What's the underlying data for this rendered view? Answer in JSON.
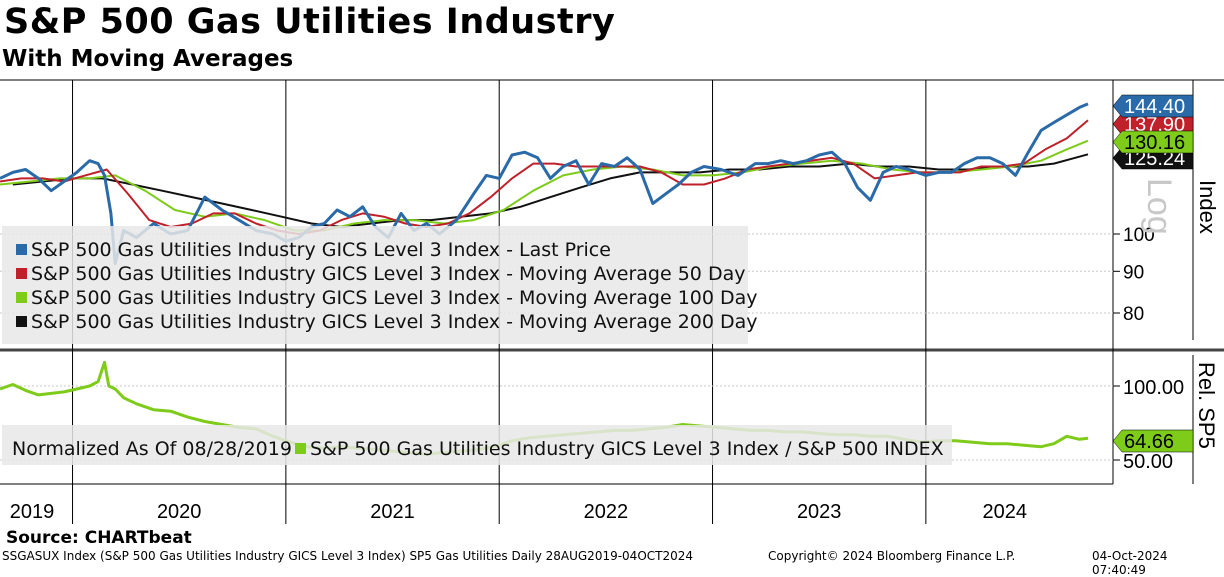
{
  "header": {
    "title": "S&P 500 Gas Utilities Industry",
    "subtitle": "With Moving Averages"
  },
  "legend": {
    "items": [
      {
        "label": "S&P 500 Gas Utilities Industry GICS Level 3 Index - Last Price",
        "color": "#2a6aa8"
      },
      {
        "label": "S&P 500 Gas Utilities Industry GICS Level 3 Index - Moving Average 50 Day",
        "color": "#c0202a"
      },
      {
        "label": "S&P 500 Gas Utilities Industry GICS Level 3 Index - Moving Average 100 Day",
        "color": "#7ecb1a"
      },
      {
        "label": "S&P 500 Gas Utilities Industry GICS Level 3 Index - Moving Average 200 Day",
        "color": "#111111"
      }
    ],
    "normalized": "Normalized As Of 08/28/2019",
    "ratio_label": "S&P 500 Gas Utilities Industry GICS Level 3 Index / S&P 500 INDEX"
  },
  "footer": {
    "source": "Source: CHARTbeat",
    "ticker_info": "SSGASUX Index (S&P 500 Gas Utilities Industry GICS Level 3 Index) SP5 Gas Utilities  Daily 28AUG2019-04OCT2024",
    "copyright": "Copyright© 2024 Bloomberg Finance L.P.",
    "timestamp": "04-Oct-2024 07:40:49"
  },
  "chart_data": [
    {
      "type": "line",
      "panel": "price",
      "ylabel": "Index",
      "scale": "log",
      "scale_label": "Log",
      "yticks": [
        80,
        90,
        100
      ],
      "ylim": [
        74,
        150
      ],
      "xlim": [
        2019.66,
        2024.76
      ],
      "x_years": [
        "2019",
        "2020",
        "2021",
        "2022",
        "2023",
        "2024"
      ],
      "last_values": [
        {
          "label": "144.40",
          "color": "#2a6aa8",
          "value": 144.4
        },
        {
          "label": "137.90",
          "color": "#c0202a",
          "value": 137.9
        },
        {
          "label": "130.16",
          "color": "#7ecb1a",
          "value": 130.16
        },
        {
          "label": "125.24",
          "color": "#111111",
          "value": 125.24
        }
      ],
      "series": [
        {
          "name": "Last Price",
          "color": "#2a6aa8",
          "x": [
            2019.66,
            2019.72,
            2019.78,
            2019.84,
            2019.9,
            2019.96,
            2020.02,
            2020.08,
            2020.12,
            2020.15,
            2020.18,
            2020.2,
            2020.24,
            2020.3,
            2020.38,
            2020.46,
            2020.54,
            2020.62,
            2020.7,
            2020.78,
            2020.86,
            2020.94,
            2021.0,
            2021.06,
            2021.12,
            2021.18,
            2021.24,
            2021.3,
            2021.36,
            2021.42,
            2021.48,
            2021.54,
            2021.6,
            2021.66,
            2021.72,
            2021.8,
            2021.88,
            2021.94,
            2022.0,
            2022.06,
            2022.12,
            2022.18,
            2022.24,
            2022.3,
            2022.36,
            2022.42,
            2022.48,
            2022.54,
            2022.6,
            2022.66,
            2022.72,
            2022.78,
            2022.84,
            2022.9,
            2022.96,
            2023.04,
            2023.12,
            2023.2,
            2023.26,
            2023.32,
            2023.38,
            2023.44,
            2023.5,
            2023.56,
            2023.62,
            2023.68,
            2023.74,
            2023.8,
            2023.86,
            2023.92,
            2024.0,
            2024.06,
            2024.12,
            2024.18,
            2024.24,
            2024.3,
            2024.36,
            2024.42,
            2024.48,
            2024.54,
            2024.6,
            2024.66,
            2024.72,
            2024.76
          ],
          "y": [
            117,
            119,
            120,
            117,
            113,
            116,
            119,
            123,
            122,
            118,
            106,
            92,
            101,
            99,
            103,
            100,
            101,
            111,
            107,
            104,
            101,
            100,
            98,
            99,
            102,
            103,
            107,
            105,
            108,
            102,
            99,
            106,
            101,
            103,
            100,
            104,
            112,
            118,
            117,
            125,
            126,
            124,
            117,
            121,
            123,
            115,
            122,
            121,
            124,
            120,
            109,
            112,
            115,
            119,
            121,
            120,
            118,
            122,
            122,
            123,
            122,
            123,
            125,
            126,
            122,
            114,
            110,
            119,
            121,
            120,
            118,
            119,
            119,
            122,
            124,
            124,
            122,
            118,
            126,
            134,
            137,
            140,
            143,
            144.4
          ]
        },
        {
          "name": "Moving Average 50 Day",
          "color": "#c0202a",
          "x": [
            2019.66,
            2019.76,
            2019.86,
            2019.96,
            2020.06,
            2020.16,
            2020.26,
            2020.36,
            2020.46,
            2020.56,
            2020.66,
            2020.76,
            2020.86,
            2020.96,
            2021.06,
            2021.16,
            2021.26,
            2021.36,
            2021.46,
            2021.56,
            2021.66,
            2021.76,
            2021.86,
            2021.96,
            2022.06,
            2022.16,
            2022.26,
            2022.36,
            2022.46,
            2022.56,
            2022.66,
            2022.76,
            2022.86,
            2022.96,
            2023.06,
            2023.16,
            2023.26,
            2023.36,
            2023.46,
            2023.56,
            2023.66,
            2023.76,
            2023.86,
            2023.96,
            2024.06,
            2024.16,
            2024.26,
            2024.36,
            2024.46,
            2024.56,
            2024.66,
            2024.76
          ],
          "y": [
            116,
            117,
            117,
            116,
            118,
            120,
            112,
            104,
            102,
            103,
            106,
            106,
            103,
            101,
            100,
            101,
            104,
            106,
            105,
            103,
            102,
            103,
            106,
            111,
            117,
            122,
            122,
            121,
            121,
            121,
            121,
            119,
            115,
            115,
            117,
            120,
            121,
            122,
            123,
            124,
            122,
            117,
            118,
            119,
            119,
            119,
            121,
            121,
            122,
            127,
            131,
            137.9
          ]
        },
        {
          "name": "Moving Average 100 Day",
          "color": "#7ecb1a",
          "x": [
            2019.66,
            2019.8,
            2019.94,
            2020.08,
            2020.2,
            2020.34,
            2020.48,
            2020.62,
            2020.76,
            2020.9,
            2021.04,
            2021.18,
            2021.32,
            2021.46,
            2021.6,
            2021.74,
            2021.88,
            2022.02,
            2022.16,
            2022.3,
            2022.44,
            2022.58,
            2022.72,
            2022.86,
            2023.0,
            2023.14,
            2023.28,
            2023.42,
            2023.56,
            2023.7,
            2023.84,
            2023.98,
            2024.12,
            2024.26,
            2024.4,
            2024.54,
            2024.66,
            2024.76
          ],
          "y": [
            115,
            116,
            117,
            117,
            118,
            113,
            107,
            105,
            106,
            104,
            101,
            101,
            103,
            104,
            104,
            103,
            104,
            107,
            113,
            118,
            120,
            121,
            120,
            118,
            118,
            119,
            121,
            122,
            123,
            122,
            120,
            119,
            119,
            120,
            121,
            123,
            127,
            130.16
          ]
        },
        {
          "name": "Moving Average 200 Day",
          "color": "#111111",
          "x": [
            2019.72,
            2019.86,
            2020.0,
            2020.14,
            2020.28,
            2020.42,
            2020.56,
            2020.7,
            2020.84,
            2020.98,
            2021.12,
            2021.26,
            2021.4,
            2021.54,
            2021.68,
            2021.82,
            2021.96,
            2022.1,
            2022.24,
            2022.38,
            2022.52,
            2022.66,
            2022.8,
            2022.94,
            2023.08,
            2023.22,
            2023.36,
            2023.5,
            2023.64,
            2023.78,
            2023.92,
            2024.06,
            2024.2,
            2024.34,
            2024.48,
            2024.6,
            2024.7,
            2024.76
          ],
          "y": [
            115,
            116,
            117,
            117,
            115,
            113,
            111,
            109,
            107,
            105,
            103,
            102,
            103,
            104,
            104,
            105,
            106,
            108,
            111,
            114,
            117,
            119,
            119,
            119,
            120,
            120,
            121,
            121,
            122,
            121,
            121,
            120,
            120,
            121,
            121,
            122,
            124,
            125.24
          ]
        }
      ]
    },
    {
      "type": "line",
      "panel": "relative",
      "ylabel": "Rel. SP5",
      "yticks": [
        50,
        100
      ],
      "ylim": [
        44,
        118
      ],
      "last_value": {
        "label": "64.66",
        "color": "#7ecb1a",
        "value": 64.66
      },
      "series": [
        {
          "name": "S&P 500 Gas Utilities Industry GICS Level 3 Index / S&P 500 INDEX",
          "color": "#7ecb1a",
          "x": [
            2019.66,
            2019.72,
            2019.78,
            2019.84,
            2019.9,
            2019.96,
            2020.02,
            2020.08,
            2020.12,
            2020.15,
            2020.17,
            2020.2,
            2020.24,
            2020.3,
            2020.38,
            2020.46,
            2020.54,
            2020.62,
            2020.7,
            2020.78,
            2020.86,
            2020.94,
            2021.02,
            2021.1,
            2021.18,
            2021.26,
            2021.34,
            2021.42,
            2021.5,
            2021.58,
            2021.66,
            2021.74,
            2021.82,
            2021.9,
            2021.98,
            2022.06,
            2022.14,
            2022.22,
            2022.3,
            2022.38,
            2022.46,
            2022.54,
            2022.62,
            2022.7,
            2022.78,
            2022.86,
            2022.94,
            2023.02,
            2023.1,
            2023.18,
            2023.26,
            2023.34,
            2023.42,
            2023.5,
            2023.58,
            2023.66,
            2023.74,
            2023.82,
            2023.9,
            2023.98,
            2024.06,
            2024.14,
            2024.22,
            2024.3,
            2024.38,
            2024.46,
            2024.54,
            2024.6,
            2024.66,
            2024.72,
            2024.76
          ],
          "y": [
            98,
            101,
            97,
            94,
            95,
            96,
            98,
            100,
            103,
            116,
            100,
            98,
            92,
            88,
            84,
            83,
            79,
            76,
            74,
            72,
            71,
            66,
            62,
            59,
            58,
            59,
            58,
            57,
            56,
            55,
            54,
            55,
            56,
            57,
            59,
            63,
            65,
            66,
            67,
            68,
            69,
            70,
            70,
            71,
            72,
            74,
            73,
            72,
            71,
            70,
            70,
            69,
            69,
            68,
            67,
            67,
            66,
            66,
            64,
            62,
            63,
            63,
            62,
            61,
            61,
            60,
            59,
            61,
            66,
            64,
            64.66
          ]
        }
      ]
    }
  ]
}
